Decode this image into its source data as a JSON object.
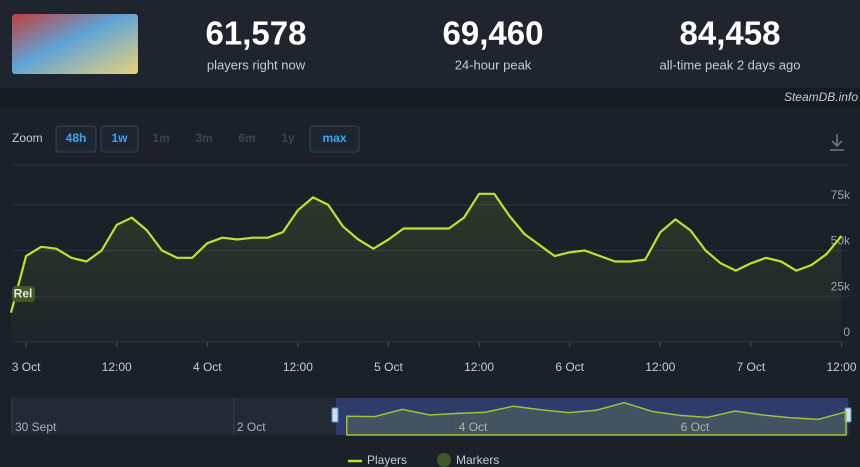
{
  "header": {
    "stats": [
      {
        "value": "61,578",
        "label": "players right now"
      },
      {
        "value": "69,460",
        "label": "24-hour peak"
      },
      {
        "value": "84,458",
        "label": "all-time peak 2 days ago"
      }
    ],
    "source": "SteamDB.info"
  },
  "zoom": {
    "label": "Zoom",
    "options": [
      {
        "label": "48h",
        "active": true
      },
      {
        "label": "1w",
        "active": true
      },
      {
        "label": "1m",
        "active": false
      },
      {
        "label": "3m",
        "active": false
      },
      {
        "label": "6m",
        "active": false
      },
      {
        "label": "1y",
        "active": false
      },
      {
        "label": "max",
        "active": true
      }
    ]
  },
  "chart_data": [
    {
      "type": "line",
      "categories": [
        null,
        "3 Oct",
        null,
        null,
        null,
        null,
        null,
        "12:00",
        null,
        null,
        null,
        null,
        null,
        "4 Oct",
        null,
        null,
        null,
        null,
        null,
        "12:00",
        null,
        null,
        null,
        null,
        null,
        "5 Oct",
        null,
        null,
        null,
        null,
        null,
        "12:00",
        null,
        null,
        null,
        null,
        null,
        "6 Oct",
        null,
        null,
        null,
        null,
        null,
        "12:00",
        null,
        null,
        null,
        null,
        null,
        "7 Oct",
        null,
        null,
        null,
        null,
        null,
        "12:00"
      ],
      "series": [
        {
          "name": "Players",
          "color": "#bfe22e",
          "values": [
            16000,
            47000,
            52000,
            51000,
            46000,
            44000,
            50000,
            64000,
            68000,
            61000,
            50000,
            46000,
            46000,
            54000,
            57000,
            56000,
            57000,
            57000,
            60000,
            72000,
            79000,
            75000,
            63000,
            56000,
            51000,
            56000,
            62000,
            62000,
            62000,
            62000,
            68000,
            81000,
            81000,
            69000,
            59000,
            53000,
            47000,
            49000,
            50000,
            47000,
            44000,
            44000,
            45000,
            60000,
            67000,
            61000,
            50000,
            43000,
            39000,
            43000,
            46000,
            44000,
            39000,
            42000,
            48000,
            58000
          ]
        }
      ],
      "ylim": [
        0,
        100000
      ],
      "yticks": [
        0,
        {
          "value": 25000,
          "label": "25k"
        },
        {
          "value": 50000,
          "label": "50k"
        },
        {
          "value": 75000,
          "label": "75k"
        }
      ],
      "grid": true,
      "markers": {
        "name": "Markers",
        "color": "#3f5a26",
        "labels": [
          "Rel"
        ]
      }
    },
    {
      "type": "area",
      "categories": [
        "30 Sept",
        null,
        null,
        null,
        null,
        null,
        null,
        null,
        "2 Oct",
        null,
        null,
        null,
        null,
        null,
        null,
        null,
        "4 Oct",
        null,
        null,
        null,
        null,
        null,
        null,
        null,
        "6 Oct",
        null,
        null,
        null,
        null,
        null,
        null
      ],
      "series": [
        {
          "color": "#9fc23a",
          "values": [
            null,
            null,
            null,
            null,
            null,
            null,
            null,
            null,
            null,
            null,
            null,
            null,
            47000,
            46000,
            64000,
            50000,
            54000,
            57000,
            72000,
            63000,
            56000,
            62000,
            81000,
            59000,
            49000,
            44000,
            60000,
            50000,
            43000,
            39000,
            58000
          ]
        }
      ]
    }
  ]
}
